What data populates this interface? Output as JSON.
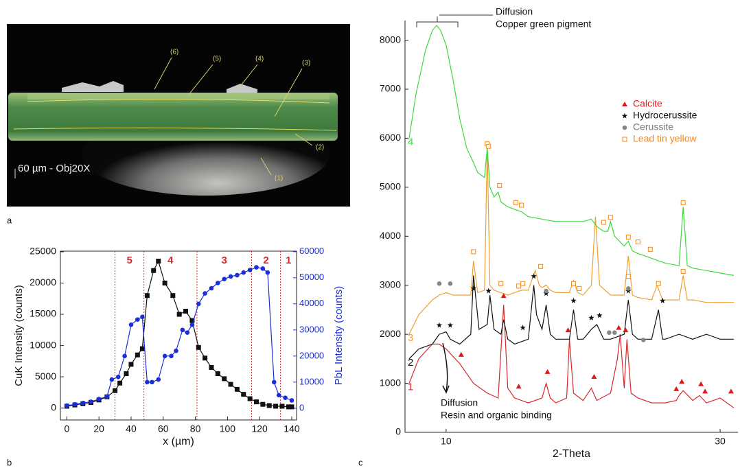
{
  "panel_labels": [
    "a",
    "b",
    "c"
  ],
  "photo": {
    "scale_label": "60 µm - Obj20X",
    "layer_labels": [
      "(1)",
      "(2)",
      "(3)",
      "(4)",
      "(5)",
      "(6)"
    ]
  },
  "chart_data": [
    {
      "type": "line",
      "xlabel": "x (µm)",
      "ylabel": "CuK Intensity (counts)",
      "y2label": "PbL Intensity (counts)",
      "xlim": [
        -4,
        143
      ],
      "xticks": [
        0,
        20,
        40,
        60,
        80,
        100,
        120,
        140
      ],
      "ylim": [
        -1900,
        25100
      ],
      "yticks": [
        0,
        5000,
        10000,
        15000,
        20000,
        25000
      ],
      "y2lim": [
        -4500,
        60200
      ],
      "y2ticks": [
        0,
        10000,
        20000,
        30000,
        40000,
        50000,
        60000
      ],
      "series": [
        {
          "color": "#111111",
          "marker": "square",
          "x": [
            0,
            5,
            10,
            15,
            20,
            25,
            30,
            33,
            37,
            40,
            44,
            47,
            50,
            54,
            57,
            61,
            66,
            70,
            74,
            78,
            82,
            86,
            90,
            94,
            98,
            102,
            106,
            110,
            114,
            118,
            122,
            126,
            130,
            134,
            138,
            140
          ],
          "values": [
            300,
            500,
            700,
            900,
            1300,
            1800,
            2800,
            4000,
            5500,
            7000,
            8500,
            9500,
            18000,
            22000,
            23500,
            20000,
            18000,
            15000,
            15500,
            14000,
            9700,
            8000,
            6500,
            5500,
            4700,
            3800,
            3000,
            2200,
            1500,
            1000,
            600,
            400,
            300,
            300,
            200,
            200
          ]
        },
        {
          "color": "#1a2fd8",
          "marker": "circle",
          "axis": "y2",
          "x": [
            0,
            5,
            10,
            15,
            20,
            25,
            28,
            32,
            36,
            40,
            44,
            47,
            50,
            53,
            57,
            61,
            65,
            68,
            72,
            75,
            78,
            82,
            86,
            90,
            94,
            98,
            102,
            106,
            110,
            114,
            118,
            122,
            125,
            129,
            132,
            136,
            140
          ],
          "values": [
            1000,
            1500,
            2000,
            2500,
            3500,
            4500,
            11000,
            12000,
            20000,
            32000,
            34000,
            35000,
            10000,
            10000,
            11000,
            20000,
            20000,
            22000,
            30000,
            29000,
            32000,
            40000,
            44000,
            46000,
            48000,
            49500,
            50500,
            51000,
            52000,
            53000,
            54000,
            53500,
            52000,
            10000,
            5000,
            4000,
            3000
          ]
        }
      ],
      "region_lines": [
        30,
        48,
        81,
        115,
        133
      ],
      "region_color": "#d42a2a",
      "region_labels": [
        "5",
        "4",
        "3",
        "2",
        "1"
      ]
    },
    {
      "type": "line",
      "xlabel": "2-Theta",
      "xlim": [
        7,
        31.3
      ],
      "xticks": [
        10,
        30
      ],
      "ylim": [
        0,
        8400
      ],
      "yticks": [
        0,
        1000,
        2000,
        3000,
        4000,
        5000,
        6000,
        7000,
        8000
      ],
      "series": [
        {
          "name": "1",
          "color": "#d42a2a",
          "x": [
            7.3,
            8,
            9,
            9.5,
            10,
            11,
            12,
            13,
            13.8,
            14.2,
            14.5,
            15,
            16,
            17,
            17.3,
            17.6,
            18,
            18.8,
            19,
            19.3,
            20,
            20.6,
            21,
            22,
            22.5,
            22.7,
            23,
            23.2,
            23.5,
            24,
            25,
            26,
            26.8,
            27,
            27.3,
            28,
            28.5,
            29,
            30,
            30.5,
            31
          ],
          "values": [
            1000,
            1500,
            1800,
            1800,
            1700,
            1400,
            1000,
            800,
            700,
            2600,
            900,
            700,
            600,
            700,
            1000,
            700,
            600,
            700,
            1900,
            800,
            650,
            900,
            650,
            800,
            1500,
            2000,
            900,
            1900,
            800,
            700,
            600,
            600,
            650,
            750,
            850,
            650,
            750,
            600,
            700,
            600,
            500
          ]
        },
        {
          "name": "2",
          "color": "#111111",
          "x": [
            7.3,
            8,
            9,
            9.5,
            10,
            10.3,
            11,
            11.8,
            12,
            12.4,
            13,
            13.2,
            13.5,
            14,
            14.2,
            14.5,
            15,
            16,
            16.4,
            16.6,
            17,
            17.3,
            17.6,
            18,
            19,
            19.3,
            19.6,
            20,
            20.6,
            21,
            21.5,
            22,
            23,
            23.3,
            23.6,
            24,
            25,
            25.5,
            25.8,
            26,
            27,
            28,
            29,
            30,
            31
          ],
          "values": [
            1500,
            1700,
            1800,
            2000,
            2050,
            1900,
            1800,
            2000,
            3200,
            2100,
            2200,
            2800,
            2100,
            2000,
            2300,
            1900,
            1800,
            1900,
            3000,
            2400,
            2100,
            2600,
            2000,
            1900,
            1900,
            2500,
            1900,
            1900,
            2100,
            2200,
            1900,
            1900,
            2000,
            2700,
            2000,
            1900,
            1900,
            2500,
            1900,
            1900,
            2000,
            1900,
            2000,
            1900,
            1900
          ]
        },
        {
          "name": "3",
          "color": "#f0a030",
          "x": [
            7.3,
            8,
            9,
            9.5,
            10,
            10.5,
            11,
            11.8,
            12,
            12.3,
            12.8,
            13,
            13.2,
            13.5,
            14,
            14.5,
            15,
            15.5,
            16,
            16.5,
            16.8,
            17,
            17.3,
            17.6,
            18,
            19,
            19.3,
            19.6,
            20,
            20.6,
            20.9,
            21.2,
            22,
            23,
            23.3,
            23.6,
            24,
            25,
            25.4,
            25.8,
            26,
            27,
            27.3,
            27.6,
            28,
            29,
            30,
            31
          ],
          "values": [
            2000,
            2400,
            2700,
            2800,
            2850,
            2800,
            2800,
            2800,
            3500,
            2850,
            2900,
            5800,
            3000,
            2900,
            2850,
            2800,
            2850,
            2900,
            2900,
            3300,
            3000,
            2950,
            3000,
            2900,
            2850,
            2850,
            3100,
            2850,
            2800,
            3000,
            4400,
            3000,
            2800,
            2800,
            3600,
            2800,
            2750,
            2700,
            3000,
            2700,
            2700,
            2700,
            3200,
            2700,
            2700,
            2650,
            2650,
            2650
          ]
        },
        {
          "name": "4",
          "color": "#3ed83e",
          "x": [
            7.3,
            7.8,
            8.5,
            9,
            9.3,
            9.6,
            10,
            10.5,
            11,
            11.5,
            12,
            12.3,
            12.8,
            13,
            13.2,
            13.5,
            13.8,
            14,
            14.5,
            15,
            15.5,
            16,
            17,
            18,
            19,
            20,
            20.6,
            21,
            21.5,
            21.8,
            22,
            22.3,
            23,
            23.3,
            23.6,
            24,
            25,
            26,
            27,
            27.3,
            27.6,
            28,
            29,
            30,
            31
          ],
          "values": [
            6000,
            6900,
            7800,
            8200,
            8300,
            8200,
            7900,
            7200,
            6400,
            5800,
            5500,
            5300,
            5200,
            5800,
            5000,
            4800,
            4900,
            4700,
            4600,
            4550,
            4500,
            4400,
            4350,
            4300,
            4300,
            4300,
            4350,
            4200,
            4100,
            4100,
            4300,
            4000,
            3800,
            3900,
            3700,
            3650,
            3550,
            3450,
            3400,
            4600,
            3400,
            3350,
            3300,
            3250,
            3200
          ]
        }
      ],
      "peak_series": [
        {
          "name": "Calcite",
          "color": "#e01818",
          "marker": "triangle",
          "x": [
            11.1,
            14.2,
            15.3,
            17.4,
            18.9,
            20.8,
            22.6,
            23.1,
            26.8,
            27.2,
            28.6,
            28.9,
            30.8
          ],
          "values": [
            1500,
            2700,
            850,
            1150,
            2000,
            1050,
            2050,
            2000,
            800,
            950,
            900,
            750,
            750
          ]
        },
        {
          "name": "Hydrocerussite",
          "color": "#111111",
          "marker": "star",
          "x": [
            9.5,
            10.3,
            12.0,
            13.1,
            15.6,
            16.4,
            17.3,
            19.3,
            20.6,
            21.2,
            23.3,
            25.8
          ],
          "values": [
            2100,
            2100,
            2850,
            2800,
            2050,
            3100,
            2750,
            2600,
            2250,
            2300,
            2800,
            2600
          ]
        },
        {
          "name": "Cerussite",
          "color": "#888888",
          "marker": "circle",
          "x": [
            9.5,
            10.3,
            21.9,
            22.3,
            24.4,
            17.3,
            23.3
          ],
          "values": [
            2950,
            2950,
            1950,
            1950,
            1800,
            2800,
            2850
          ]
        },
        {
          "name": "Lead tin yellow",
          "color": "#f08a20",
          "marker": "square",
          "x": [
            12.0,
            13.0,
            14.0,
            15.3,
            15.6,
            16.9,
            19.3,
            19.7,
            23.3,
            25.5,
            27.3,
            13.1,
            13.9,
            15.1,
            15.5,
            21.5,
            22.0,
            23.3,
            24.0,
            24.9,
            27.3
          ],
          "values": [
            3600,
            5800,
            2950,
            2900,
            2950,
            3300,
            2950,
            2850,
            3100,
            2950,
            3200,
            5750,
            4950,
            4600,
            4550,
            4200,
            4300,
            3900,
            3800,
            3650,
            4600
          ]
        }
      ],
      "annotations": [
        [
          "Diffusion",
          "Copper green pigment"
        ],
        [
          "Diffusion",
          "Resin and organic binding"
        ]
      ]
    }
  ]
}
